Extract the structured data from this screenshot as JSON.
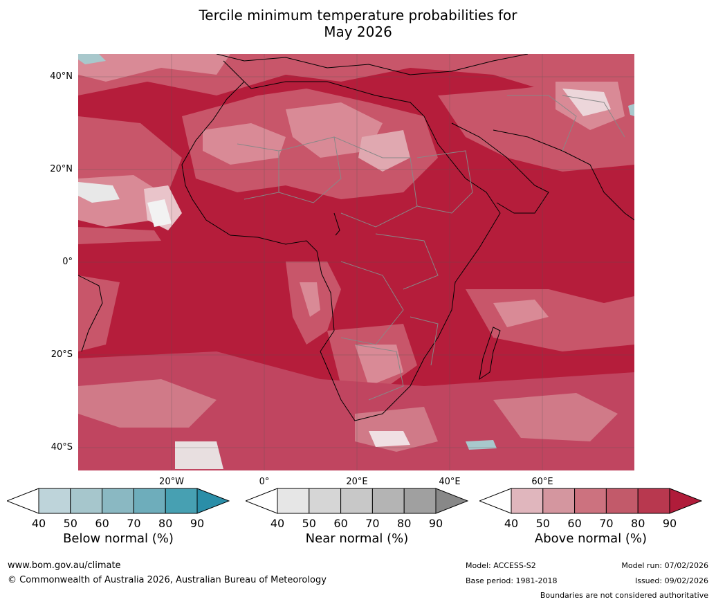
{
  "title_line1": "Tercile minimum temperature probabilities for",
  "title_line2": "May 2026",
  "lat_labels": [
    "40°N",
    "20°N",
    "0°",
    "20°S",
    "40°S"
  ],
  "lon_labels": [
    "20°W",
    "0°",
    "20°E",
    "40°E",
    "60°E"
  ],
  "legends": [
    {
      "name": "Below normal (%)",
      "ticks": [
        "40",
        "50",
        "60",
        "70",
        "80",
        "90"
      ],
      "colors": [
        "#bed4da",
        "#a6c6cc",
        "#8ab8c2",
        "#6eadbb",
        "#47a0b2",
        "#2a8ea8"
      ]
    },
    {
      "name": "Near normal (%)",
      "ticks": [
        "40",
        "50",
        "60",
        "70",
        "80",
        "90"
      ],
      "colors": [
        "#e6e6e6",
        "#d6d6d6",
        "#c8c8c8",
        "#b4b4b4",
        "#a0a0a0",
        "#888888"
      ]
    },
    {
      "name": "Above normal (%)",
      "ticks": [
        "40",
        "50",
        "60",
        "70",
        "80",
        "90"
      ],
      "colors": [
        "#e0b6bd",
        "#d4969f",
        "#cc727f",
        "#c25a6a",
        "#b8384f",
        "#b01c3a"
      ]
    }
  ],
  "footer": {
    "website": "www.bom.gov.au/climate",
    "copyright": "© Commonwealth of Australia 2026, Australian Bureau of Meteorology",
    "model": "Model: ACCESS-S2",
    "base_period": "Base period: 1981-2018",
    "model_run": "Model run: 07/02/2026",
    "issued": "Issued: 09/02/2026",
    "disclaimer": "Boundaries are not considered authoritative"
  }
}
